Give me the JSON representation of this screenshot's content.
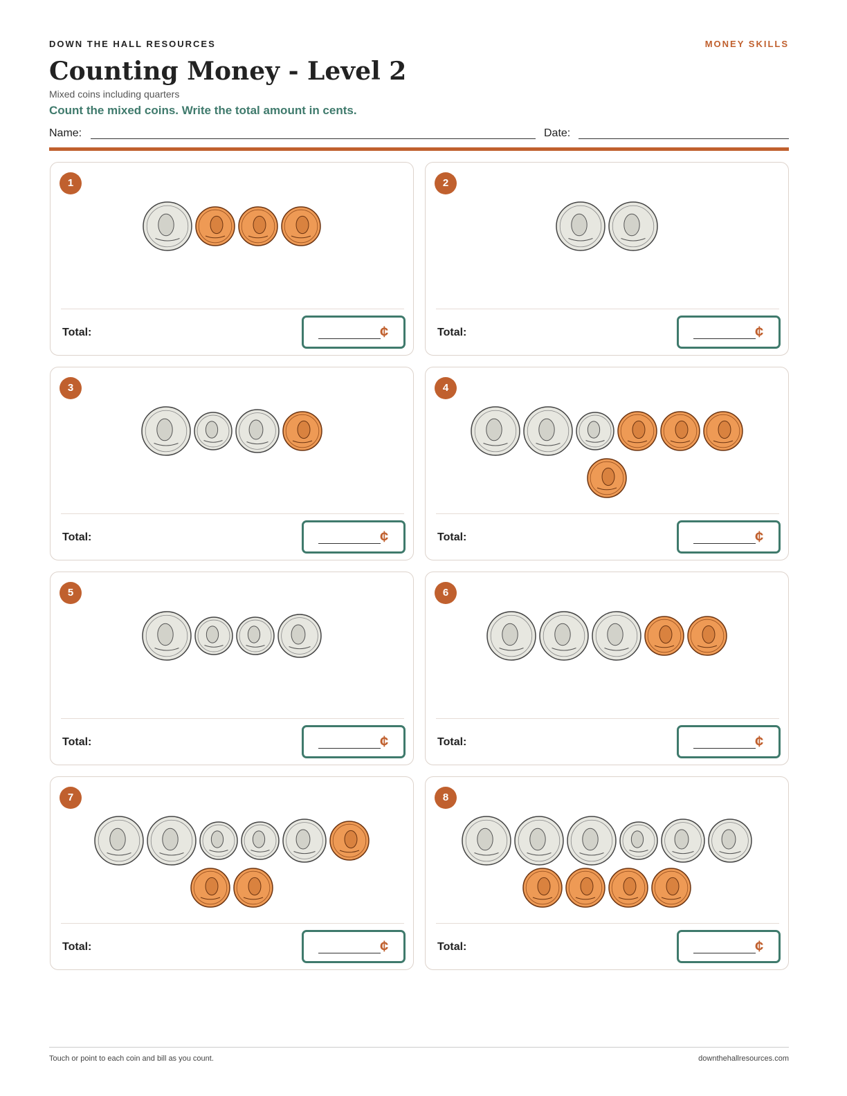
{
  "header": {
    "brand": "DOWN THE HALL RESOURCES",
    "tag": "MONEY SKILLS",
    "title": "Counting Money - Level 2",
    "subtitle": "Mixed coins including quarters",
    "instructions": "Count the mixed coins. Write the total amount in cents.",
    "name_label": "Name:",
    "date_label": "Date:"
  },
  "problems": [
    {
      "number": 1,
      "total_label": "Total:",
      "unit": "¢"
    },
    {
      "number": 2,
      "total_label": "Total:",
      "unit": "¢"
    },
    {
      "number": 3,
      "total_label": "Total:",
      "unit": "¢"
    },
    {
      "number": 4,
      "total_label": "Total:",
      "unit": "¢"
    },
    {
      "number": 5,
      "total_label": "Total:",
      "unit": "¢"
    },
    {
      "number": 6,
      "total_label": "Total:",
      "unit": "¢"
    },
    {
      "number": 7,
      "total_label": "Total:",
      "unit": "¢"
    },
    {
      "number": 8,
      "total_label": "Total:",
      "unit": "¢"
    }
  ],
  "footer": {
    "left": "Touch or point to each coin and bill as you count.",
    "right": "downthehallresources.com"
  }
}
